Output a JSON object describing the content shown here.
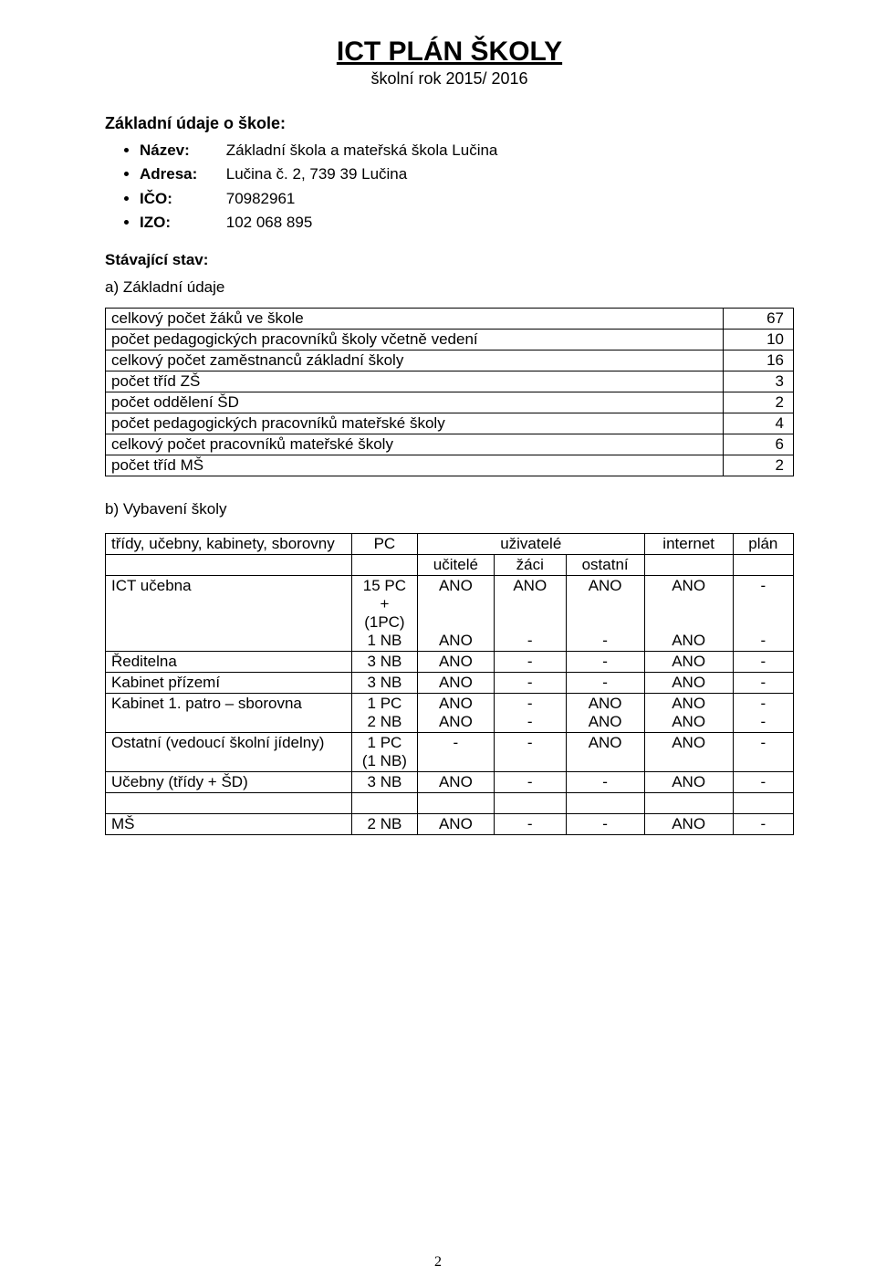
{
  "header": {
    "title": "ICT PLÁN ŠKOLY",
    "subtitle": "školní rok 2015/ 2016"
  },
  "basic_info": {
    "section_label": "Základní údaje o škole:",
    "items": [
      {
        "label": "Název:",
        "value": "Základní škola a mateřská škola Lučina"
      },
      {
        "label": "Adresa:",
        "value": "Lučina č. 2, 739 39 Lučina"
      },
      {
        "label": "IČO:",
        "value": "70982961"
      },
      {
        "label": "IZO:",
        "value": "102 068 895"
      }
    ]
  },
  "state": {
    "heading": "Stávající stav:",
    "section_a": "a) Základní údaje",
    "rows": [
      {
        "label": "celkový počet žáků ve škole",
        "value": "67"
      },
      {
        "label": "počet pedagogických pracovníků školy včetně vedení",
        "value": "10"
      },
      {
        "label": "celkový počet zaměstnanců základní školy",
        "value": "16"
      },
      {
        "label": "počet tříd ZŠ",
        "value": "3"
      },
      {
        "label": "počet oddělení ŠD",
        "value": "2"
      },
      {
        "label": "počet pedagogických pracovníků mateřské školy",
        "value": "4"
      },
      {
        "label": "celkový počet pracovníků mateřské školy",
        "value": "6"
      },
      {
        "label": "počet tříd MŠ",
        "value": "2"
      }
    ],
    "section_b": "b) Vybavení školy"
  },
  "equip": {
    "headers": {
      "col1": "třídy, učebny, kabinety, sborovny",
      "col2": "PC",
      "col3": "uživatelé",
      "col3a": "učitelé",
      "col3b": "žáci",
      "col3c": "ostatní",
      "col4": "internet",
      "col5": "plán"
    },
    "rows": [
      {
        "name": "ICT učebna",
        "pc": "15 PC\n+\n(1PC)\n1 NB",
        "ucitele": "ANO\n\n\nANO",
        "zaci": "ANO\n\n\n-",
        "ostatni": "ANO\n\n\n-",
        "internet": "ANO\n\n\nANO",
        "plan": "-\n\n\n-"
      },
      {
        "name": "Ředitelna",
        "pc": "3 NB",
        "ucitele": "ANO",
        "zaci": "-",
        "ostatni": "-",
        "internet": "ANO",
        "plan": "-"
      },
      {
        "name": "Kabinet přízemí",
        "pc": "3 NB",
        "ucitele": "ANO",
        "zaci": "-",
        "ostatni": "-",
        "internet": "ANO",
        "plan": "-"
      },
      {
        "name": "Kabinet 1. patro – sborovna",
        "pc": "1 PC\n2 NB",
        "ucitele": "ANO\nANO",
        "zaci": "-\n-",
        "ostatni": "ANO\nANO",
        "internet": "ANO\nANO",
        "plan": "-\n-"
      },
      {
        "name": "Ostatní (vedoucí školní jídelny)",
        "pc": "1 PC\n(1 NB)",
        "ucitele": "-",
        "zaci": "-",
        "ostatni": "ANO",
        "internet": "ANO",
        "plan": "-"
      },
      {
        "name": "Učebny (třídy + ŠD)",
        "pc": "3 NB",
        "ucitele": "ANO",
        "zaci": "-",
        "ostatni": "-",
        "internet": "ANO",
        "plan": "-"
      }
    ],
    "footer_row": {
      "name": "MŠ",
      "pc": "2 NB",
      "ucitele": "ANO",
      "zaci": "-",
      "ostatni": "-",
      "internet": "ANO",
      "plan": "-"
    }
  },
  "page_number": "2"
}
